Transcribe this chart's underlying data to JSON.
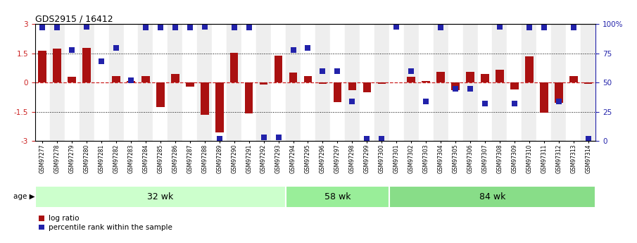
{
  "title": "GDS2915 / 16412",
  "samples": [
    "GSM97277",
    "GSM97278",
    "GSM97279",
    "GSM97280",
    "GSM97281",
    "GSM97282",
    "GSM97283",
    "GSM97284",
    "GSM97285",
    "GSM97286",
    "GSM97287",
    "GSM97288",
    "GSM97289",
    "GSM97290",
    "GSM97291",
    "GSM97292",
    "GSM97293",
    "GSM97294",
    "GSM97295",
    "GSM97296",
    "GSM97297",
    "GSM97298",
    "GSM97299",
    "GSM97300",
    "GSM97301",
    "GSM97302",
    "GSM97303",
    "GSM97304",
    "GSM97305",
    "GSM97306",
    "GSM97307",
    "GSM97308",
    "GSM97309",
    "GSM97310",
    "GSM97311",
    "GSM97312",
    "GSM97313",
    "GSM97314"
  ],
  "log_ratio": [
    1.65,
    1.75,
    0.3,
    1.78,
    0.0,
    0.35,
    0.1,
    0.35,
    -1.25,
    0.45,
    -0.2,
    -1.65,
    -2.55,
    1.55,
    -1.6,
    -0.08,
    1.4,
    0.5,
    0.35,
    -0.05,
    -1.0,
    -0.4,
    -0.5,
    -0.05,
    0.0,
    0.3,
    0.1,
    0.55,
    -0.4,
    0.55,
    0.45,
    0.65,
    -0.35,
    1.35,
    -1.55,
    -1.05,
    0.35,
    -0.05
  ],
  "percentile_pct": [
    97,
    97,
    78,
    98,
    68,
    80,
    52,
    97,
    97,
    97,
    97,
    98,
    2,
    97,
    97,
    3,
    3,
    78,
    80,
    60,
    60,
    34,
    2,
    2,
    98,
    60,
    34,
    97,
    45,
    45,
    32,
    98,
    32,
    97,
    97,
    34,
    97,
    2
  ],
  "groups": [
    {
      "label": "32 wk",
      "start": 0,
      "end": 17
    },
    {
      "label": "58 wk",
      "start": 17,
      "end": 24
    },
    {
      "label": "84 wk",
      "start": 24,
      "end": 38
    }
  ],
  "group_colors": [
    "#ccffcc",
    "#99ee99",
    "#88dd88"
  ],
  "group_label": "age",
  "bar_color": "#aa1111",
  "dot_color": "#2222aa",
  "bar_width": 0.55,
  "dot_size": 28,
  "legend_log_ratio": "log ratio",
  "legend_percentile": "percentile rank within the sample"
}
